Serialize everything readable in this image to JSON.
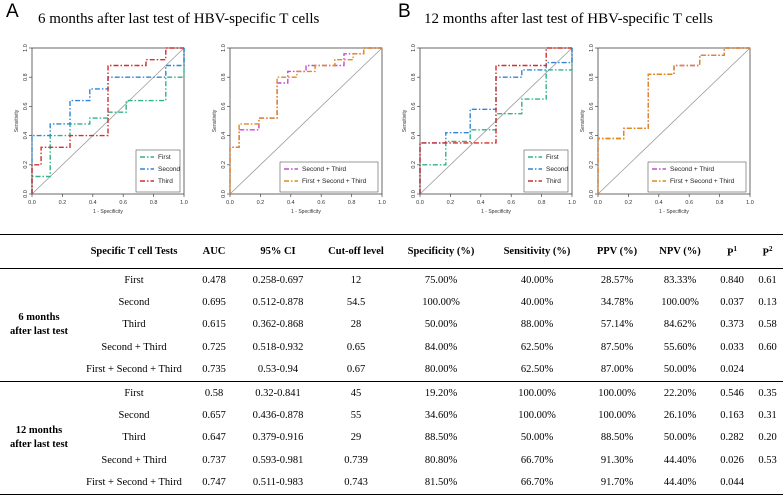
{
  "panels": [
    {
      "letter": "A",
      "title": "6 months after last test of HBV-specific T cells",
      "charts": [
        {
          "type": "line",
          "chart_kind": "ROC",
          "xlabel": "1 - Specificity",
          "ylabel": "Sensitivity",
          "xlim": [
            0,
            1
          ],
          "ylim": [
            0,
            1
          ],
          "xticks": [
            "0.0",
            "0.2",
            "0.4",
            "0.6",
            "0.8",
            "1.0"
          ],
          "yticks": [
            "0.0",
            "0.2",
            "0.4",
            "0.6",
            "0.8",
            "1.0"
          ],
          "legend_position": "bottom-right",
          "series": [
            {
              "name": "First",
              "color": "#2fb38a",
              "points": [
                [
                  0,
                  0
                ],
                [
                  0,
                  0.12
                ],
                [
                  0.12,
                  0.12
                ],
                [
                  0.12,
                  0.4
                ],
                [
                  0.25,
                  0.4
                ],
                [
                  0.25,
                  0.48
                ],
                [
                  0.38,
                  0.48
                ],
                [
                  0.38,
                  0.52
                ],
                [
                  0.5,
                  0.52
                ],
                [
                  0.5,
                  0.56
                ],
                [
                  0.62,
                  0.56
                ],
                [
                  0.62,
                  0.64
                ],
                [
                  0.88,
                  0.64
                ],
                [
                  0.88,
                  0.8
                ],
                [
                  1,
                  0.8
                ],
                [
                  1,
                  1
                ]
              ]
            },
            {
              "name": "Second",
              "color": "#2f86d8",
              "points": [
                [
                  0,
                  0
                ],
                [
                  0,
                  0.4
                ],
                [
                  0.12,
                  0.4
                ],
                [
                  0.12,
                  0.48
                ],
                [
                  0.25,
                  0.48
                ],
                [
                  0.25,
                  0.64
                ],
                [
                  0.38,
                  0.64
                ],
                [
                  0.38,
                  0.72
                ],
                [
                  0.5,
                  0.72
                ],
                [
                  0.5,
                  0.8
                ],
                [
                  0.88,
                  0.8
                ],
                [
                  0.88,
                  0.88
                ],
                [
                  1,
                  0.88
                ],
                [
                  1,
                  1
                ]
              ]
            },
            {
              "name": "Third",
              "color": "#d32f2f",
              "points": [
                [
                  0,
                  0
                ],
                [
                  0,
                  0.2
                ],
                [
                  0.06,
                  0.2
                ],
                [
                  0.06,
                  0.32
                ],
                [
                  0.25,
                  0.32
                ],
                [
                  0.25,
                  0.4
                ],
                [
                  0.5,
                  0.4
                ],
                [
                  0.5,
                  0.88
                ],
                [
                  0.75,
                  0.88
                ],
                [
                  0.75,
                  0.92
                ],
                [
                  0.88,
                  0.92
                ],
                [
                  0.88,
                  1
                ],
                [
                  1,
                  1
                ]
              ]
            }
          ]
        },
        {
          "type": "line",
          "chart_kind": "ROC",
          "xlabel": "1 - Specificity",
          "ylabel": "Sensitivity",
          "xlim": [
            0,
            1
          ],
          "ylim": [
            0,
            1
          ],
          "xticks": [
            "0.0",
            "0.2",
            "0.4",
            "0.6",
            "0.8",
            "1.0"
          ],
          "yticks": [
            "0.0",
            "0.2",
            "0.4",
            "0.6",
            "0.8",
            "1.0"
          ],
          "legend_position": "bottom-right",
          "series": [
            {
              "name": "Second + Third",
              "color": "#c64ad6",
              "points": [
                [
                  0,
                  0
                ],
                [
                  0,
                  0.32
                ],
                [
                  0.06,
                  0.32
                ],
                [
                  0.06,
                  0.44
                ],
                [
                  0.19,
                  0.44
                ],
                [
                  0.19,
                  0.52
                ],
                [
                  0.31,
                  0.52
                ],
                [
                  0.31,
                  0.76
                ],
                [
                  0.38,
                  0.76
                ],
                [
                  0.38,
                  0.84
                ],
                [
                  0.5,
                  0.84
                ],
                [
                  0.5,
                  0.88
                ],
                [
                  0.75,
                  0.88
                ],
                [
                  0.75,
                  0.96
                ],
                [
                  0.88,
                  0.96
                ],
                [
                  0.88,
                  1
                ],
                [
                  1,
                  1
                ]
              ]
            },
            {
              "name": "First + Second + Third",
              "color": "#e08a1a",
              "points": [
                [
                  0,
                  0
                ],
                [
                  0,
                  0.32
                ],
                [
                  0.06,
                  0.32
                ],
                [
                  0.06,
                  0.48
                ],
                [
                  0.19,
                  0.48
                ],
                [
                  0.19,
                  0.52
                ],
                [
                  0.31,
                  0.52
                ],
                [
                  0.31,
                  0.8
                ],
                [
                  0.44,
                  0.8
                ],
                [
                  0.44,
                  0.84
                ],
                [
                  0.56,
                  0.84
                ],
                [
                  0.56,
                  0.88
                ],
                [
                  0.69,
                  0.88
                ],
                [
                  0.69,
                  0.92
                ],
                [
                  0.81,
                  0.92
                ],
                [
                  0.81,
                  0.96
                ],
                [
                  0.88,
                  0.96
                ],
                [
                  0.88,
                  1
                ],
                [
                  1,
                  1
                ]
              ]
            }
          ]
        }
      ]
    },
    {
      "letter": "B",
      "title": "12 months after last test of HBV-specific T cells",
      "charts": [
        {
          "type": "line",
          "chart_kind": "ROC",
          "xlabel": "1 - Specificity",
          "ylabel": "Sensitivity",
          "xlim": [
            0,
            1
          ],
          "ylim": [
            0,
            1
          ],
          "xticks": [
            "0.0",
            "0.2",
            "0.4",
            "0.6",
            "0.8",
            "1.0"
          ],
          "yticks": [
            "0.0",
            "0.2",
            "0.4",
            "0.6",
            "0.8",
            "1.0"
          ],
          "legend_position": "bottom-right",
          "series": [
            {
              "name": "First",
              "color": "#2fb38a",
              "points": [
                [
                  0,
                  0
                ],
                [
                  0,
                  0.2
                ],
                [
                  0.17,
                  0.2
                ],
                [
                  0.17,
                  0.36
                ],
                [
                  0.33,
                  0.36
                ],
                [
                  0.33,
                  0.44
                ],
                [
                  0.5,
                  0.44
                ],
                [
                  0.5,
                  0.55
                ],
                [
                  0.67,
                  0.55
                ],
                [
                  0.67,
                  0.65
                ],
                [
                  0.83,
                  0.65
                ],
                [
                  0.83,
                  0.85
                ],
                [
                  1,
                  0.85
                ],
                [
                  1,
                  1
                ]
              ]
            },
            {
              "name": "Second",
              "color": "#2f86d8",
              "points": [
                [
                  0,
                  0
                ],
                [
                  0,
                  0.35
                ],
                [
                  0.17,
                  0.35
                ],
                [
                  0.17,
                  0.42
                ],
                [
                  0.33,
                  0.42
                ],
                [
                  0.33,
                  0.58
                ],
                [
                  0.5,
                  0.58
                ],
                [
                  0.5,
                  0.8
                ],
                [
                  0.67,
                  0.8
                ],
                [
                  0.67,
                  0.85
                ],
                [
                  0.83,
                  0.85
                ],
                [
                  0.83,
                  0.9
                ],
                [
                  1,
                  0.9
                ],
                [
                  1,
                  1
                ]
              ]
            },
            {
              "name": "Third",
              "color": "#d32f2f",
              "points": [
                [
                  0,
                  0
                ],
                [
                  0,
                  0.35
                ],
                [
                  0.5,
                  0.35
                ],
                [
                  0.5,
                  0.88
                ],
                [
                  0.83,
                  0.88
                ],
                [
                  0.83,
                  1
                ],
                [
                  1,
                  1
                ]
              ]
            }
          ]
        },
        {
          "type": "line",
          "chart_kind": "ROC",
          "xlabel": "1 - Specificity",
          "ylabel": "Sensitivity",
          "xlim": [
            0,
            1
          ],
          "ylim": [
            0,
            1
          ],
          "xticks": [
            "0.0",
            "0.2",
            "0.4",
            "0.6",
            "0.8",
            "1.0"
          ],
          "yticks": [
            "0.0",
            "0.2",
            "0.4",
            "0.6",
            "0.8",
            "1.0"
          ],
          "legend_position": "bottom-right",
          "series": [
            {
              "name": "Second + Third",
              "color": "#c64ad6",
              "points": [
                [
                  0,
                  0
                ],
                [
                  0,
                  0.38
                ],
                [
                  0.17,
                  0.38
                ],
                [
                  0.17,
                  0.45
                ],
                [
                  0.33,
                  0.45
                ],
                [
                  0.33,
                  0.82
                ],
                [
                  0.5,
                  0.82
                ],
                [
                  0.5,
                  0.88
                ],
                [
                  0.67,
                  0.88
                ],
                [
                  0.67,
                  0.95
                ],
                [
                  0.83,
                  0.95
                ],
                [
                  0.83,
                  1
                ],
                [
                  1,
                  1
                ]
              ]
            },
            {
              "name": "First + Second + Third",
              "color": "#e08a1a",
              "points": [
                [
                  0,
                  0
                ],
                [
                  0,
                  0.38
                ],
                [
                  0.17,
                  0.38
                ],
                [
                  0.17,
                  0.45
                ],
                [
                  0.33,
                  0.45
                ],
                [
                  0.33,
                  0.82
                ],
                [
                  0.5,
                  0.82
                ],
                [
                  0.5,
                  0.88
                ],
                [
                  0.67,
                  0.88
                ],
                [
                  0.67,
                  0.95
                ],
                [
                  0.83,
                  0.95
                ],
                [
                  0.83,
                  1
                ],
                [
                  1,
                  1
                ]
              ]
            }
          ]
        }
      ]
    }
  ],
  "table": {
    "headers": [
      "Specific T cell Tests",
      "AUC",
      "95% CI",
      "Cut-off level",
      "Specificity (%)",
      "Sensitivity (%)",
      "PPV (%)",
      "NPV (%)",
      "P",
      "P"
    ],
    "p1_sup": "1",
    "p2_sup": "2",
    "groups": [
      {
        "label_line1": "6 months",
        "label_line2": "after last test",
        "rows": [
          [
            "First",
            "0.478",
            "0.258-0.697",
            "12",
            "75.00%",
            "40.00%",
            "28.57%",
            "83.33%",
            "0.840",
            "0.61"
          ],
          [
            "Second",
            "0.695",
            "0.512-0.878",
            "54.5",
            "100.00%",
            "40.00%",
            "34.78%",
            "100.00%",
            "0.037",
            "0.13"
          ],
          [
            "Third",
            "0.615",
            "0.362-0.868",
            "28",
            "50.00%",
            "88.00%",
            "57.14%",
            "84.62%",
            "0.373",
            "0.58"
          ],
          [
            "Second + Third",
            "0.725",
            "0.518-0.932",
            "0.65",
            "84.00%",
            "62.50%",
            "87.50%",
            "55.60%",
            "0.033",
            "0.60"
          ],
          [
            "First + Second + Third",
            "0.735",
            "0.53-0.94",
            "0.67",
            "80.00%",
            "62.50%",
            "87.00%",
            "50.00%",
            "0.024",
            ""
          ]
        ]
      },
      {
        "label_line1": "12 months",
        "label_line2": "after last test",
        "rows": [
          [
            "First",
            "0.58",
            "0.32-0.841",
            "45",
            "19.20%",
            "100.00%",
            "100.00%",
            "22.20%",
            "0.546",
            "0.35"
          ],
          [
            "Second",
            "0.657",
            "0.436-0.878",
            "55",
            "34.60%",
            "100.00%",
            "100.00%",
            "26.10%",
            "0.163",
            "0.31"
          ],
          [
            "Third",
            "0.647",
            "0.379-0.916",
            "29",
            "88.50%",
            "50.00%",
            "88.50%",
            "50.00%",
            "0.282",
            "0.20"
          ],
          [
            "Second + Third",
            "0.737",
            "0.593-0.981",
            "0.739",
            "80.80%",
            "66.70%",
            "91.30%",
            "44.40%",
            "0.026",
            "0.53"
          ],
          [
            "First + Second + Third",
            "0.747",
            "0.511-0.983",
            "0.743",
            "81.50%",
            "66.70%",
            "91.70%",
            "44.40%",
            "0.044",
            ""
          ]
        ]
      }
    ]
  }
}
